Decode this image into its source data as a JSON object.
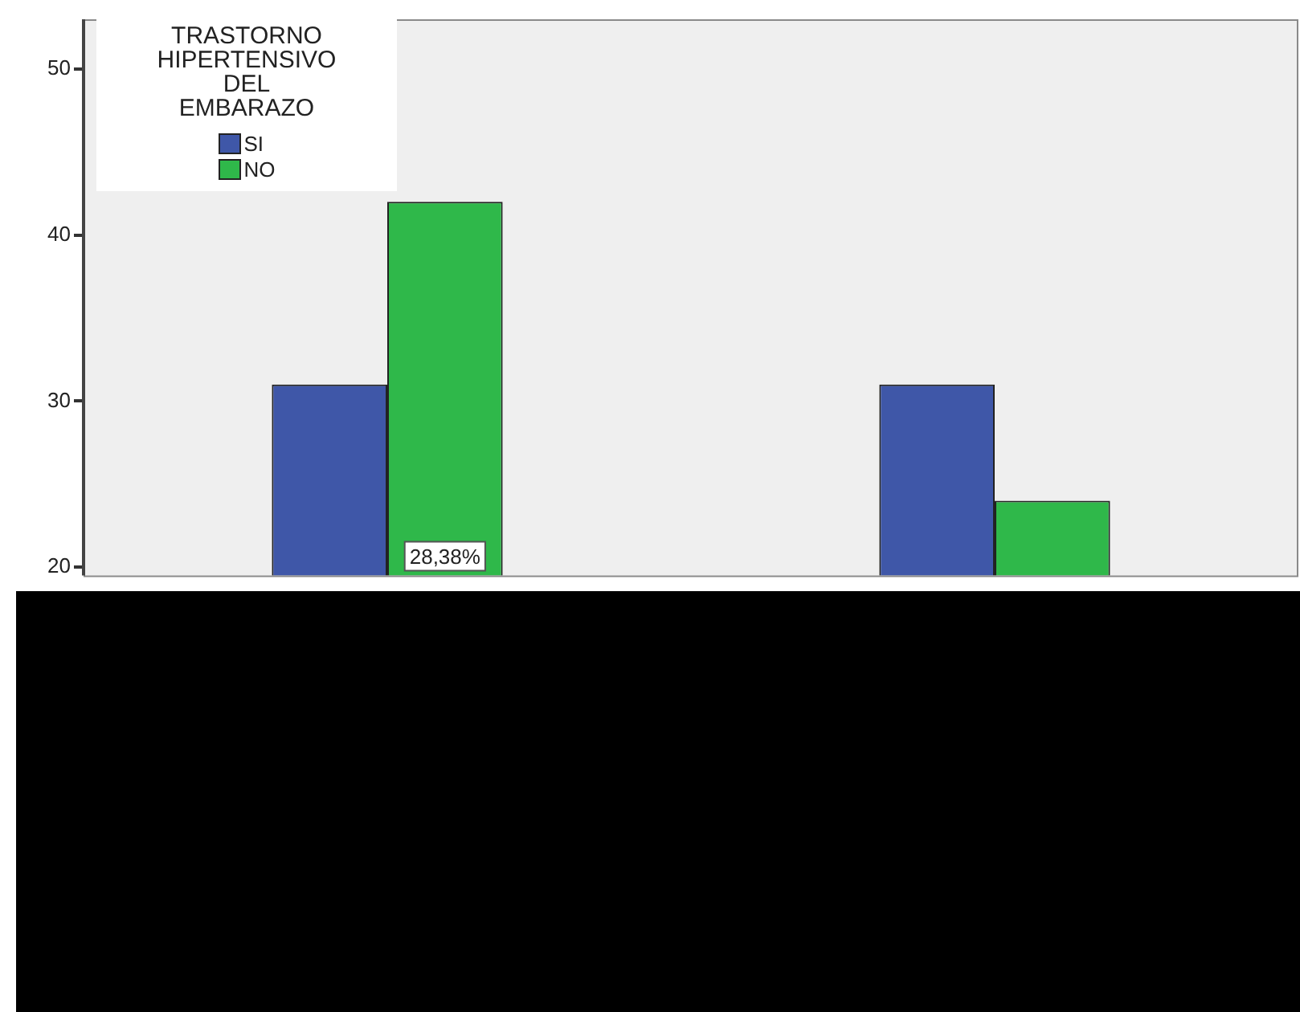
{
  "chart_data": {
    "type": "bar",
    "legend_title": "TRASTORNO HIPERTENSIVO DEL EMBARAZO",
    "categories": [
      null,
      null
    ],
    "series": [
      {
        "name": "SI",
        "color": "#3f57a8",
        "values": [
          31,
          31
        ]
      },
      {
        "name": "NO",
        "color": "#2fb84a",
        "values": [
          42,
          24
        ]
      }
    ],
    "annotations": [
      "28,38%"
    ],
    "ylim": [
      19.5,
      53
    ],
    "yticks": [
      20,
      30,
      40,
      50
    ],
    "legend": "top left"
  }
}
